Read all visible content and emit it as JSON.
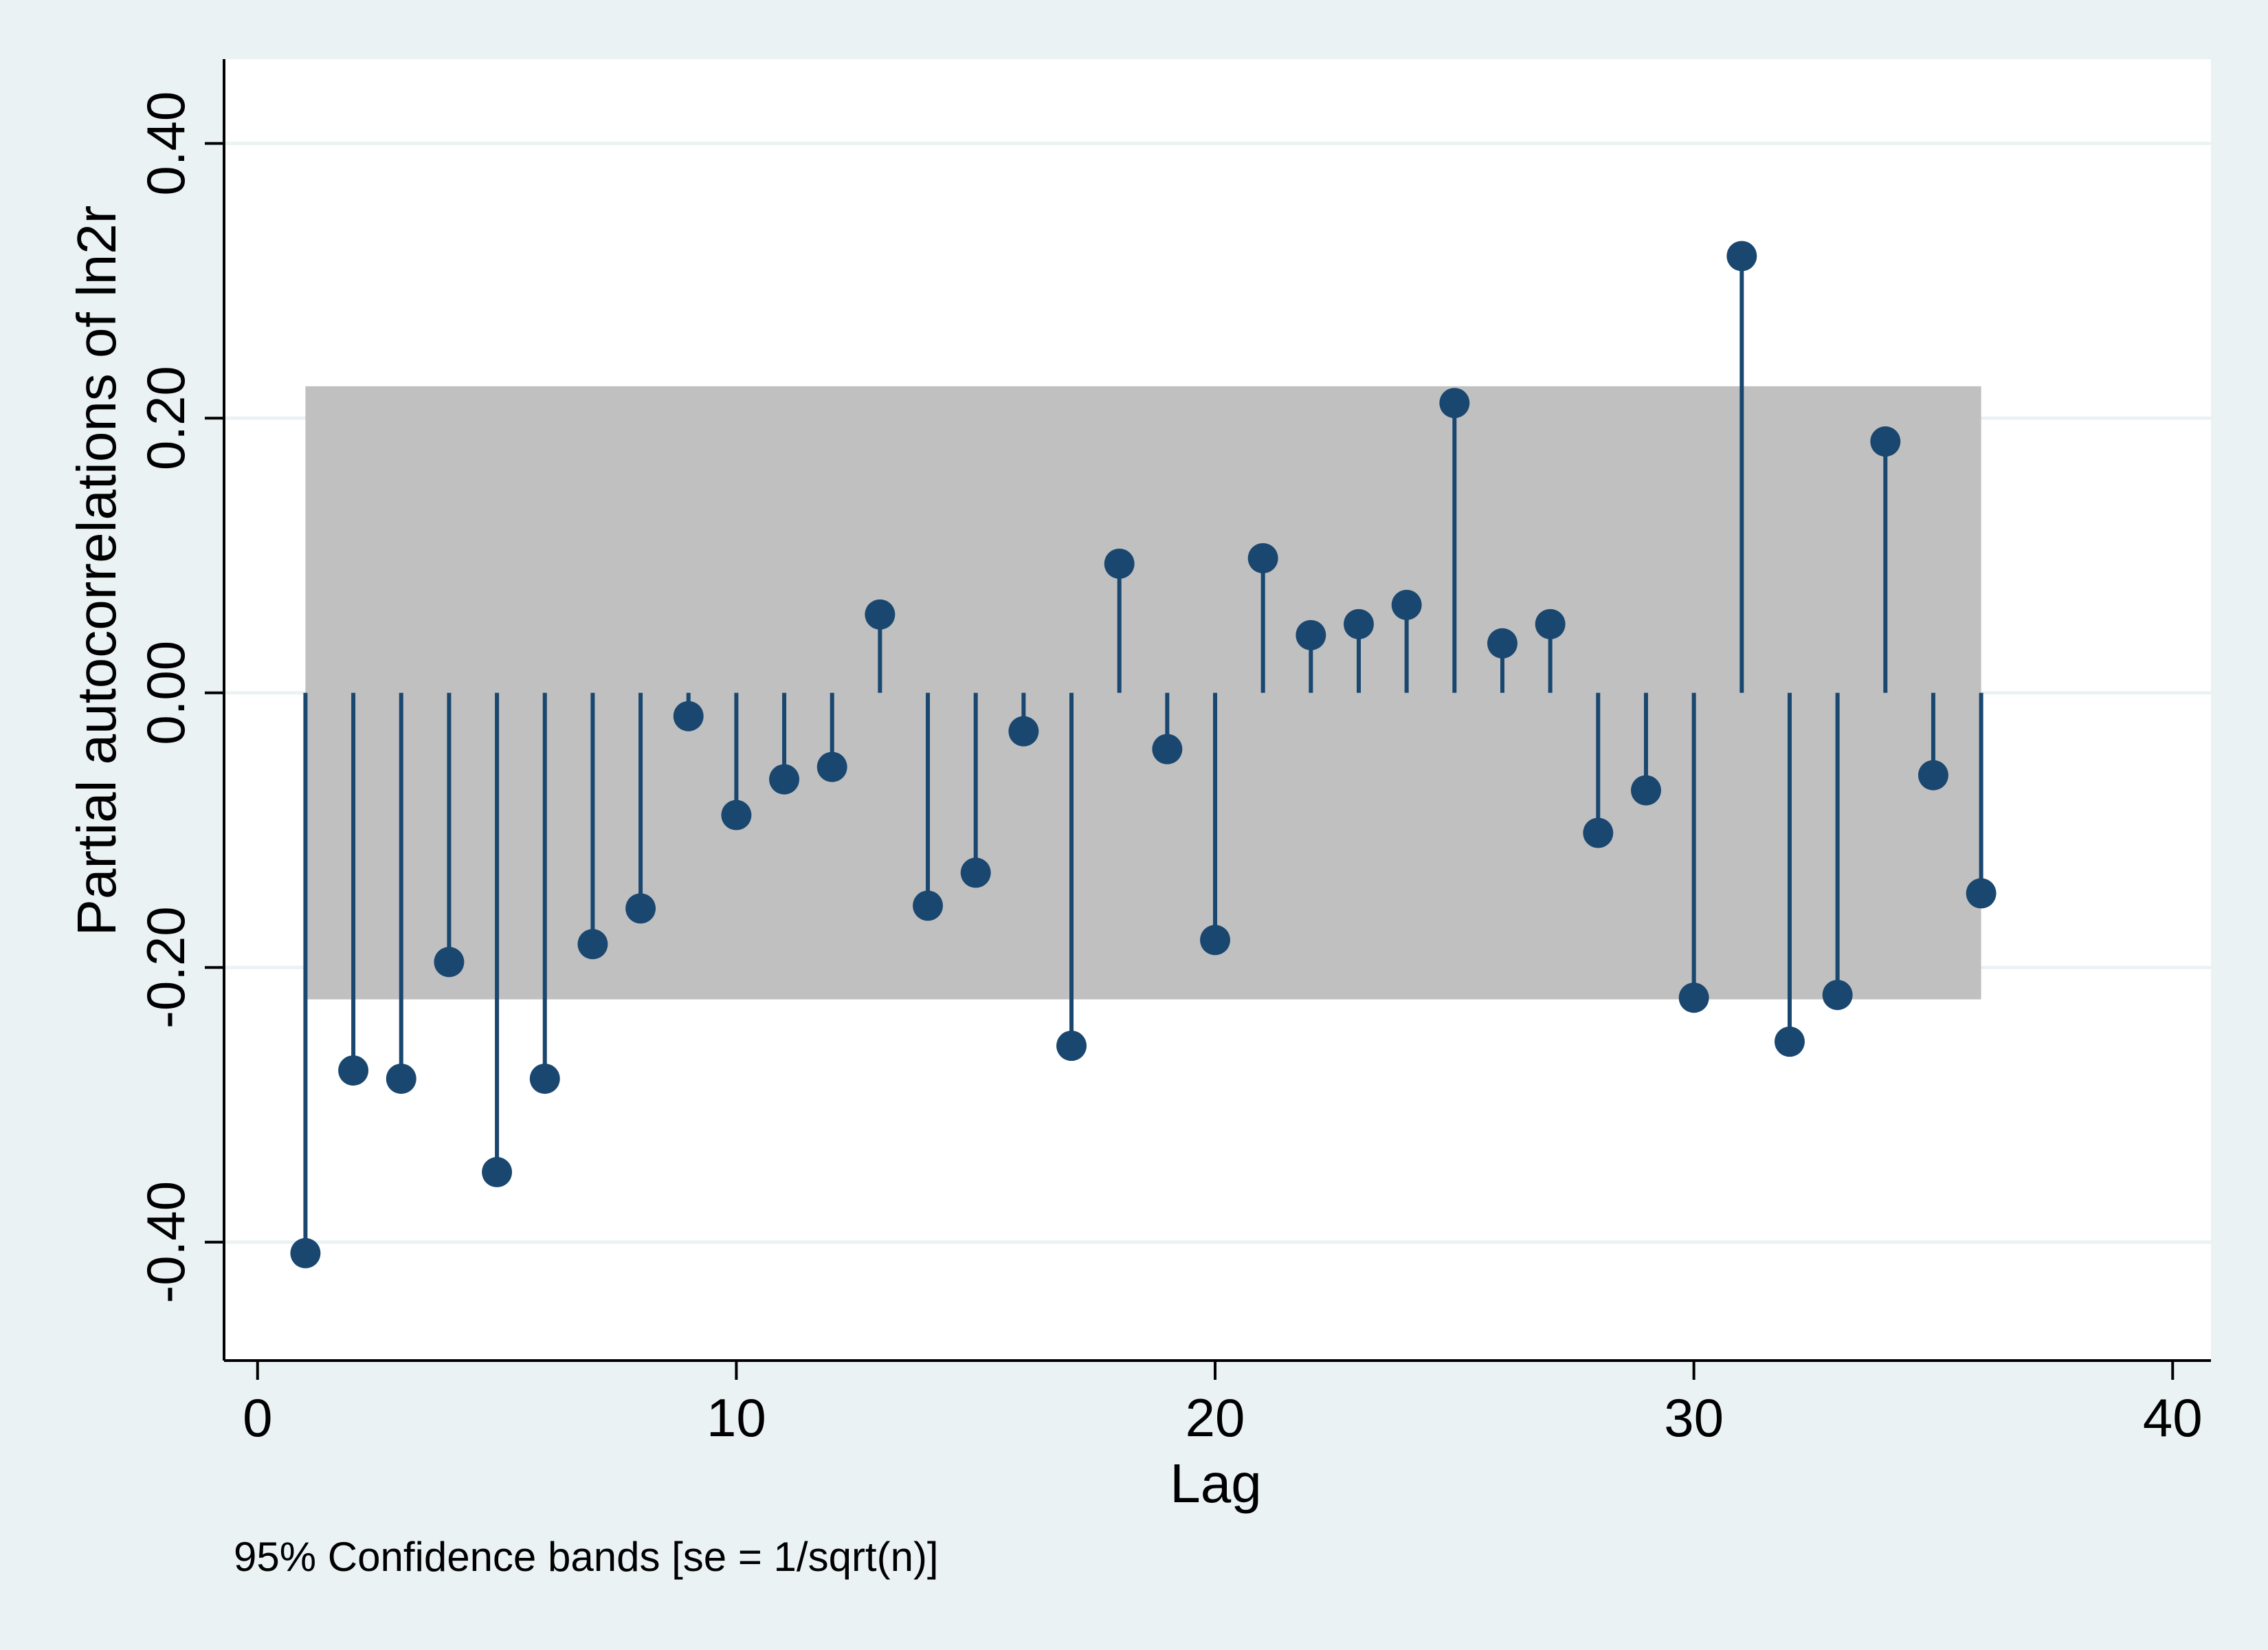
{
  "chart_data": {
    "type": "scatter",
    "style": "stem",
    "xlabel": "Lag",
    "ylabel": "Partial autocorrelations of ln2r",
    "note": "95% Confidence bands [se = 1/sqrt(n)]",
    "xlim": [
      -0.7,
      40.8
    ],
    "ylim": [
      -0.4862,
      0.4614
    ],
    "xticks": [
      0,
      10,
      20,
      30,
      40
    ],
    "xtick_labels": [
      "0",
      "10",
      "20",
      "30",
      "40"
    ],
    "yticks": [
      -0.4,
      -0.2,
      0,
      0.2,
      0.4
    ],
    "ytick_labels": [
      "-0.40",
      "-0.20",
      "0.00",
      "0.20",
      "0.40"
    ],
    "grid": true,
    "confidence_band": {
      "x_start": 1,
      "x_end": 36,
      "lower": -0.2232,
      "upper": 0.2232
    },
    "x": [
      1,
      2,
      3,
      4,
      5,
      6,
      7,
      8,
      9,
      10,
      11,
      12,
      13,
      14,
      15,
      16,
      17,
      18,
      19,
      20,
      21,
      22,
      23,
      24,
      25,
      26,
      27,
      28,
      29,
      30,
      31,
      32,
      33,
      34,
      35,
      36
    ],
    "values": [
      -0.408,
      -0.275,
      -0.281,
      -0.196,
      -0.349,
      -0.281,
      -0.183,
      -0.157,
      -0.017,
      -0.089,
      -0.063,
      -0.054,
      0.057,
      -0.155,
      -0.131,
      -0.028,
      -0.257,
      0.094,
      -0.041,
      -0.18,
      0.098,
      0.042,
      0.05,
      0.064,
      0.211,
      0.036,
      0.05,
      -0.102,
      -0.071,
      -0.222,
      0.318,
      -0.254,
      -0.22,
      0.183,
      -0.06,
      -0.146
    ],
    "colors": {
      "background": "#eaf2f3",
      "plot_background": "#ffffff",
      "band": "#c0c0c0",
      "marker": "#1a476f",
      "grid": "#eaf2f3",
      "axis": "#000000"
    }
  }
}
